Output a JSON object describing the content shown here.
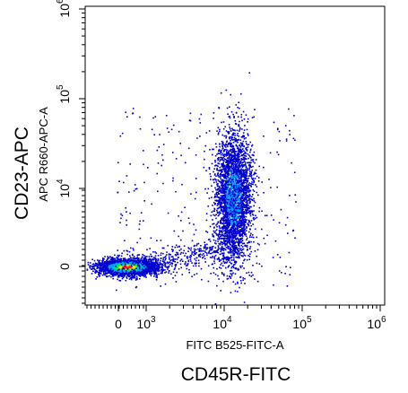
{
  "chart_data": {
    "type": "scatter",
    "style": "density dot plot",
    "title": "",
    "x_axis": {
      "label": "FITC B525-FITC-A",
      "marker_label": "CD45R-FITC",
      "scale": "biexponential",
      "range": [
        -1000,
        1000000
      ],
      "tick_labels": [
        {
          "value": 0,
          "base": "0",
          "exp": ""
        },
        {
          "value": 1000,
          "base": "10",
          "exp": "3"
        },
        {
          "value": 10000,
          "base": "10",
          "exp": "4"
        },
        {
          "value": 100000,
          "base": "10",
          "exp": "5"
        },
        {
          "value": 1000000,
          "base": "10",
          "exp": "6"
        }
      ]
    },
    "y_axis": {
      "label": "APC R660-APC-A",
      "marker_label": "CD23-APC",
      "scale": "biexponential",
      "range": [
        -1000,
        1000000
      ],
      "tick_labels": [
        {
          "value": 0,
          "base": "0",
          "exp": ""
        },
        {
          "value": 10000,
          "base": "10",
          "exp": "4"
        },
        {
          "value": 100000,
          "base": "10",
          "exp": "5"
        },
        {
          "value": 1000000,
          "base": "10",
          "exp": "6"
        }
      ]
    },
    "grid": false,
    "color_scale": [
      "#0000cc",
      "#00a0ff",
      "#00e070",
      "#ffe000",
      "#ff2000"
    ],
    "populations": [
      {
        "center_x": 300,
        "center_y": 0,
        "spread_x": "narrow",
        "spread_y": "narrow",
        "relative_count": 0.55
      },
      {
        "center_x": 13000,
        "center_y": 9000,
        "spread_x": "narrow",
        "spread_y": "wide",
        "relative_count": 0.45
      }
    ]
  }
}
